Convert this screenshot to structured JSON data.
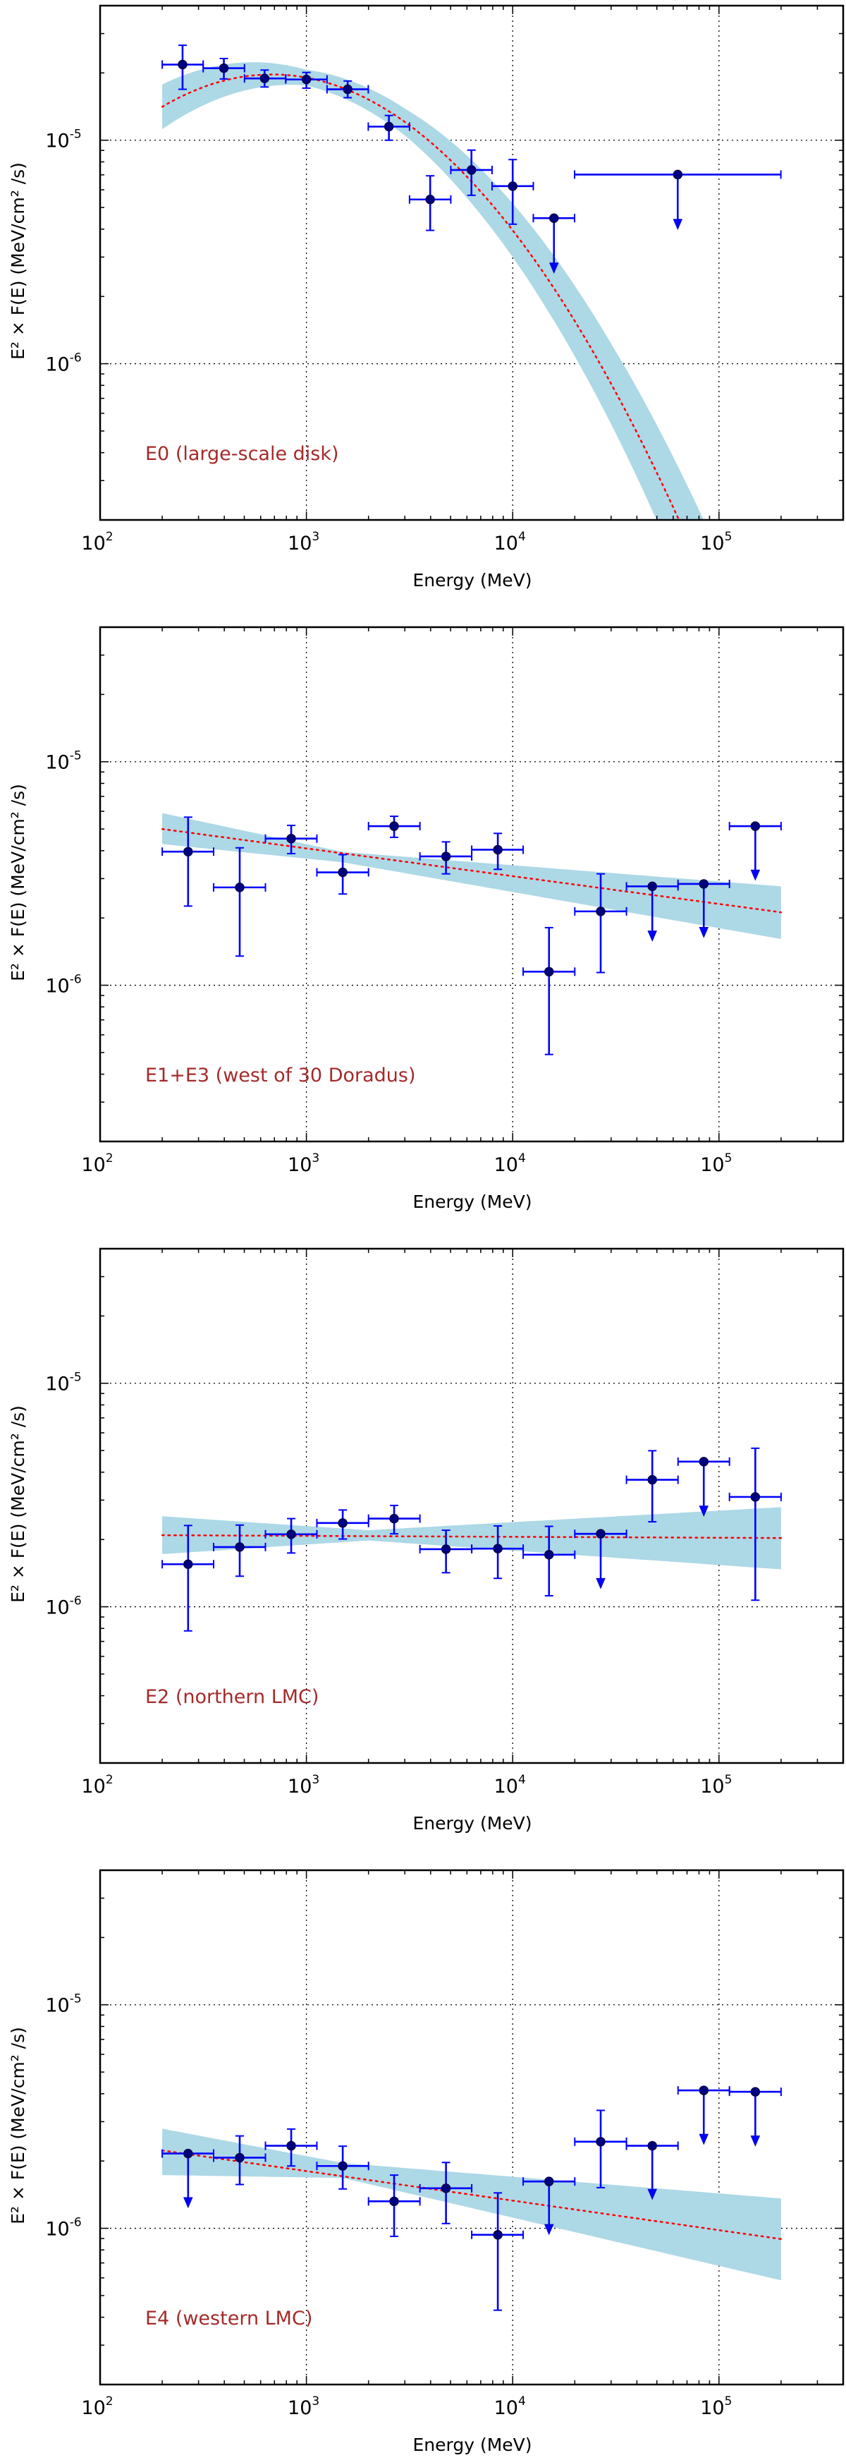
{
  "figure": {
    "colors": {
      "band": "#add8e6",
      "model": "#ff0000",
      "errorbar": "#0000ff",
      "marker_fill": "#000080",
      "marker_edge": "#00004d",
      "label": "#a52a2a",
      "grid": "#000000",
      "axis": "#000000"
    }
  },
  "chart_data": [
    {
      "type": "scatter",
      "label": "E0 (large-scale disk)",
      "xlabel": "Energy (MeV)",
      "ylabel": "E² × F(E)  (MeV/cm² /s)",
      "xscale": "log",
      "yscale": "log",
      "xlim": [
        100,
        400000
      ],
      "ylim": [
        2e-07,
        4e-05
      ],
      "grid": true,
      "xticks": [
        {
          "base": "10",
          "exp": "2",
          "value": 100
        },
        {
          "base": "10",
          "exp": "3",
          "value": 1000
        },
        {
          "base": "10",
          "exp": "4",
          "value": 10000
        },
        {
          "base": "10",
          "exp": "5",
          "value": 100000
        }
      ],
      "yticks": [
        {
          "base": "10",
          "exp": "-5",
          "value": 1e-05
        },
        {
          "base": "10",
          "exp": "-6",
          "value": 1e-06
        }
      ],
      "model": {
        "kind": "logparabola",
        "pivot_mev": 1000,
        "norm": 1.905e-05,
        "alpha": 0.171,
        "beta": 0.512,
        "emin": 200,
        "emax": 200000,
        "band_halfwidth_dex": [
          [
            200,
            0.1
          ],
          [
            1000,
            0.035
          ],
          [
            3000,
            0.06
          ],
          [
            10000,
            0.12
          ],
          [
            30000,
            0.18
          ],
          [
            100000,
            0.26
          ],
          [
            200000,
            0.3
          ]
        ]
      },
      "points": [
        {
          "e": 251,
          "elo": 200,
          "ehi": 316,
          "y": 2.18e-05,
          "ylo": 1.69e-05,
          "yhi": 2.66e-05,
          "ul": false
        },
        {
          "e": 398,
          "elo": 316,
          "ehi": 501,
          "y": 2.1e-05,
          "ylo": 1.88e-05,
          "yhi": 2.32e-05,
          "ul": false
        },
        {
          "e": 627,
          "elo": 501,
          "ehi": 794,
          "y": 1.89e-05,
          "ylo": 1.73e-05,
          "yhi": 2.06e-05,
          "ul": false
        },
        {
          "e": 1000,
          "elo": 794,
          "ehi": 1259,
          "y": 1.87e-05,
          "ylo": 1.71e-05,
          "yhi": 2.01e-05,
          "ul": false
        },
        {
          "e": 1585,
          "elo": 1259,
          "ehi": 1995,
          "y": 1.69e-05,
          "ylo": 1.55e-05,
          "yhi": 1.84e-05,
          "ul": false
        },
        {
          "e": 2512,
          "elo": 1995,
          "ehi": 3162,
          "y": 1.15e-05,
          "ylo": 1e-05,
          "yhi": 1.29e-05,
          "ul": false
        },
        {
          "e": 3981,
          "elo": 3162,
          "ehi": 5012,
          "y": 5.43e-06,
          "ylo": 3.95e-06,
          "yhi": 6.93e-06,
          "ul": false
        },
        {
          "e": 6310,
          "elo": 5012,
          "ehi": 7943,
          "y": 7.36e-06,
          "ylo": 5.67e-06,
          "yhi": 9.03e-06,
          "ul": false
        },
        {
          "e": 10000,
          "elo": 7943,
          "ehi": 12589,
          "y": 6.23e-06,
          "ylo": 4.21e-06,
          "yhi": 8.19e-06,
          "ul": false
        },
        {
          "e": 15849,
          "elo": 12589,
          "ehi": 19953,
          "y": 4.48e-06,
          "arrow_to": 2.55e-06,
          "ul": true
        },
        {
          "e": 63096,
          "elo": 19953,
          "ehi": 199526,
          "y": 7.02e-06,
          "arrow_to": 4e-06,
          "ul": true
        }
      ]
    },
    {
      "type": "scatter",
      "label": "E1+E3 (west of 30 Doradus)",
      "xlabel": "Energy (MeV)",
      "ylabel": "E² × F(E)  (MeV/cm² /s)",
      "xscale": "log",
      "yscale": "log",
      "xlim": [
        100,
        400000
      ],
      "ylim": [
        2e-07,
        4e-05
      ],
      "grid": true,
      "xticks": [
        {
          "base": "10",
          "exp": "2",
          "value": 100
        },
        {
          "base": "10",
          "exp": "3",
          "value": 1000
        },
        {
          "base": "10",
          "exp": "4",
          "value": 10000
        },
        {
          "base": "10",
          "exp": "5",
          "value": 100000
        }
      ],
      "yticks": [
        {
          "base": "10",
          "exp": "-5",
          "value": 1e-05
        },
        {
          "base": "10",
          "exp": "-6",
          "value": 1e-06
        }
      ],
      "model": {
        "kind": "powerlaw",
        "e1": 200,
        "y1": 5e-06,
        "e2": 200000,
        "y2": 2.12e-06,
        "band": [
          [
            200,
            4.28e-06,
            5.89e-06
          ],
          [
            1500,
            3.55e-06,
            3.95e-06
          ],
          [
            200000,
            1.61e-06,
            2.77e-06
          ]
        ]
      },
      "points": [
        {
          "e": 267,
          "elo": 200,
          "ehi": 355,
          "y": 3.96e-06,
          "ylo": 2.26e-06,
          "yhi": 5.65e-06,
          "ul": false
        },
        {
          "e": 475,
          "elo": 355,
          "ehi": 633,
          "y": 2.74e-06,
          "ylo": 1.35e-06,
          "yhi": 4.12e-06,
          "ul": false
        },
        {
          "e": 844,
          "elo": 633,
          "ehi": 1124,
          "y": 4.53e-06,
          "ylo": 3.88e-06,
          "yhi": 5.19e-06,
          "ul": false
        },
        {
          "e": 1500,
          "elo": 1124,
          "ehi": 2000,
          "y": 3.2e-06,
          "ylo": 2.56e-06,
          "yhi": 3.84e-06,
          "ul": false
        },
        {
          "e": 2662,
          "elo": 2000,
          "ehi": 3550,
          "y": 5.15e-06,
          "ylo": 4.59e-06,
          "yhi": 5.7e-06,
          "ul": false
        },
        {
          "e": 4750,
          "elo": 3550,
          "ehi": 6330,
          "y": 3.77e-06,
          "ylo": 3.15e-06,
          "yhi": 4.38e-06,
          "ul": false
        },
        {
          "e": 8470,
          "elo": 6330,
          "ehi": 11240,
          "y": 4.04e-06,
          "ylo": 3.3e-06,
          "yhi": 4.78e-06,
          "ul": false
        },
        {
          "e": 15000,
          "elo": 11240,
          "ehi": 20000,
          "y": 1.15e-06,
          "ylo": 4.9e-07,
          "yhi": 1.81e-06,
          "ul": false
        },
        {
          "e": 26700,
          "elo": 20000,
          "ehi": 35600,
          "y": 2.14e-06,
          "ylo": 1.14e-06,
          "yhi": 3.15e-06,
          "ul": false
        },
        {
          "e": 47500,
          "elo": 35600,
          "ehi": 63300,
          "y": 2.77e-06,
          "arrow_to": 1.58e-06,
          "ul": true
        },
        {
          "e": 84400,
          "elo": 63300,
          "ehi": 112400,
          "y": 2.84e-06,
          "arrow_to": 1.64e-06,
          "ul": true
        },
        {
          "e": 150000,
          "elo": 112400,
          "ehi": 200000,
          "y": 5.15e-06,
          "arrow_to": 2.96e-06,
          "ul": true
        }
      ]
    },
    {
      "type": "scatter",
      "label": "E2 (northern LMC)",
      "xlabel": "Energy (MeV)",
      "ylabel": "E² × F(E)  (MeV/cm² /s)",
      "xscale": "log",
      "yscale": "log",
      "xlim": [
        100,
        400000
      ],
      "ylim": [
        2e-07,
        4e-05
      ],
      "grid": true,
      "xticks": [
        {
          "base": "10",
          "exp": "2",
          "value": 100
        },
        {
          "base": "10",
          "exp": "3",
          "value": 1000
        },
        {
          "base": "10",
          "exp": "4",
          "value": 10000
        },
        {
          "base": "10",
          "exp": "5",
          "value": 100000
        }
      ],
      "yticks": [
        {
          "base": "10",
          "exp": "-5",
          "value": 1e-05
        },
        {
          "base": "10",
          "exp": "-6",
          "value": 1e-06
        }
      ],
      "model": {
        "kind": "powerlaw",
        "e1": 200,
        "y1": 2.09e-06,
        "e2": 200000,
        "y2": 2.03e-06,
        "band": [
          [
            200,
            1.72e-06,
            2.54e-06
          ],
          [
            2000,
            1.98e-06,
            2.2e-06
          ],
          [
            200000,
            1.47e-06,
            2.79e-06
          ]
        ]
      },
      "points": [
        {
          "e": 267,
          "elo": 200,
          "ehi": 355,
          "y": 1.55e-06,
          "ylo": 7.8e-07,
          "yhi": 2.31e-06,
          "ul": false
        },
        {
          "e": 475,
          "elo": 355,
          "ehi": 633,
          "y": 1.85e-06,
          "ylo": 1.37e-06,
          "yhi": 2.32e-06,
          "ul": false
        },
        {
          "e": 844,
          "elo": 633,
          "ehi": 1124,
          "y": 2.11e-06,
          "ylo": 1.74e-06,
          "yhi": 2.48e-06,
          "ul": false
        },
        {
          "e": 1500,
          "elo": 1124,
          "ehi": 2000,
          "y": 2.37e-06,
          "ylo": 2.01e-06,
          "yhi": 2.71e-06,
          "ul": false
        },
        {
          "e": 2662,
          "elo": 2000,
          "ehi": 3550,
          "y": 2.48e-06,
          "ylo": 2.12e-06,
          "yhi": 2.84e-06,
          "ul": false
        },
        {
          "e": 4750,
          "elo": 3550,
          "ehi": 6330,
          "y": 1.81e-06,
          "ylo": 1.42e-06,
          "yhi": 2.2e-06,
          "ul": false
        },
        {
          "e": 8470,
          "elo": 6330,
          "ehi": 11240,
          "y": 1.82e-06,
          "ylo": 1.34e-06,
          "yhi": 2.3e-06,
          "ul": false
        },
        {
          "e": 15000,
          "elo": 11240,
          "ehi": 20000,
          "y": 1.71e-06,
          "ylo": 1.12e-06,
          "yhi": 2.29e-06,
          "ul": false
        },
        {
          "e": 26700,
          "elo": 20000,
          "ehi": 35600,
          "y": 2.12e-06,
          "arrow_to": 1.21e-06,
          "ul": true
        },
        {
          "e": 47500,
          "elo": 35600,
          "ehi": 63300,
          "y": 3.7e-06,
          "ylo": 2.4e-06,
          "yhi": 4.99e-06,
          "ul": false
        },
        {
          "e": 84400,
          "elo": 63300,
          "ehi": 112400,
          "y": 4.46e-06,
          "arrow_to": 2.55e-06,
          "ul": true
        },
        {
          "e": 150000,
          "elo": 112400,
          "ehi": 200000,
          "y": 3.1e-06,
          "ylo": 1.07e-06,
          "yhi": 5.12e-06,
          "ul": false
        }
      ]
    },
    {
      "type": "scatter",
      "label": "E4 (western LMC)",
      "xlabel": "Energy (MeV)",
      "ylabel": "E² × F(E)  (MeV/cm² /s)",
      "xscale": "log",
      "yscale": "log",
      "xlim": [
        100,
        400000
      ],
      "ylim": [
        2e-07,
        4e-05
      ],
      "grid": true,
      "xticks": [
        {
          "base": "10",
          "exp": "2",
          "value": 100
        },
        {
          "base": "10",
          "exp": "3",
          "value": 1000
        },
        {
          "base": "10",
          "exp": "4",
          "value": 10000
        },
        {
          "base": "10",
          "exp": "5",
          "value": 100000
        }
      ],
      "yticks": [
        {
          "base": "10",
          "exp": "-5",
          "value": 1e-05
        },
        {
          "base": "10",
          "exp": "-6",
          "value": 1e-06
        }
      ],
      "model": {
        "kind": "powerlaw",
        "e1": 200,
        "y1": 2.23e-06,
        "e2": 200000,
        "y2": 8.95e-07,
        "band": [
          [
            200,
            1.73e-06,
            2.79e-06
          ],
          [
            1500,
            1.68e-06,
            1.96e-06
          ],
          [
            200000,
            5.85e-07,
            1.36e-06
          ]
        ]
      },
      "points": [
        {
          "e": 267,
          "elo": 200,
          "ehi": 355,
          "y": 2.16e-06,
          "arrow_to": 1.24e-06,
          "ul": true
        },
        {
          "e": 475,
          "elo": 355,
          "ehi": 633,
          "y": 2.07e-06,
          "ylo": 1.57e-06,
          "yhi": 2.59e-06,
          "ul": false
        },
        {
          "e": 844,
          "elo": 633,
          "ehi": 1124,
          "y": 2.34e-06,
          "ylo": 1.9e-06,
          "yhi": 2.78e-06,
          "ul": false
        },
        {
          "e": 1500,
          "elo": 1124,
          "ehi": 2000,
          "y": 1.9e-06,
          "ylo": 1.5e-06,
          "yhi": 2.33e-06,
          "ul": false
        },
        {
          "e": 2662,
          "elo": 2000,
          "ehi": 3550,
          "y": 1.32e-06,
          "ylo": 9.2e-07,
          "yhi": 1.73e-06,
          "ul": false
        },
        {
          "e": 4750,
          "elo": 3550,
          "ehi": 6330,
          "y": 1.51e-06,
          "ylo": 1.05e-06,
          "yhi": 1.97e-06,
          "ul": false
        },
        {
          "e": 8470,
          "elo": 6330,
          "ehi": 11240,
          "y": 9.35e-07,
          "ylo": 4.3e-07,
          "yhi": 1.44e-06,
          "ul": false
        },
        {
          "e": 15000,
          "elo": 11240,
          "ehi": 20000,
          "y": 1.62e-06,
          "arrow_to": 9.4e-07,
          "ul": true
        },
        {
          "e": 26700,
          "elo": 20000,
          "ehi": 35600,
          "y": 2.44e-06,
          "ylo": 1.52e-06,
          "yhi": 3.37e-06,
          "ul": false
        },
        {
          "e": 47500,
          "elo": 35600,
          "ehi": 63300,
          "y": 2.34e-06,
          "arrow_to": 1.35e-06,
          "ul": true
        },
        {
          "e": 84400,
          "elo": 63300,
          "ehi": 112400,
          "y": 4.14e-06,
          "arrow_to": 2.38e-06,
          "ul": true
        },
        {
          "e": 150000,
          "elo": 112400,
          "ehi": 200000,
          "y": 4.08e-06,
          "arrow_to": 2.34e-06,
          "ul": true
        }
      ]
    }
  ]
}
